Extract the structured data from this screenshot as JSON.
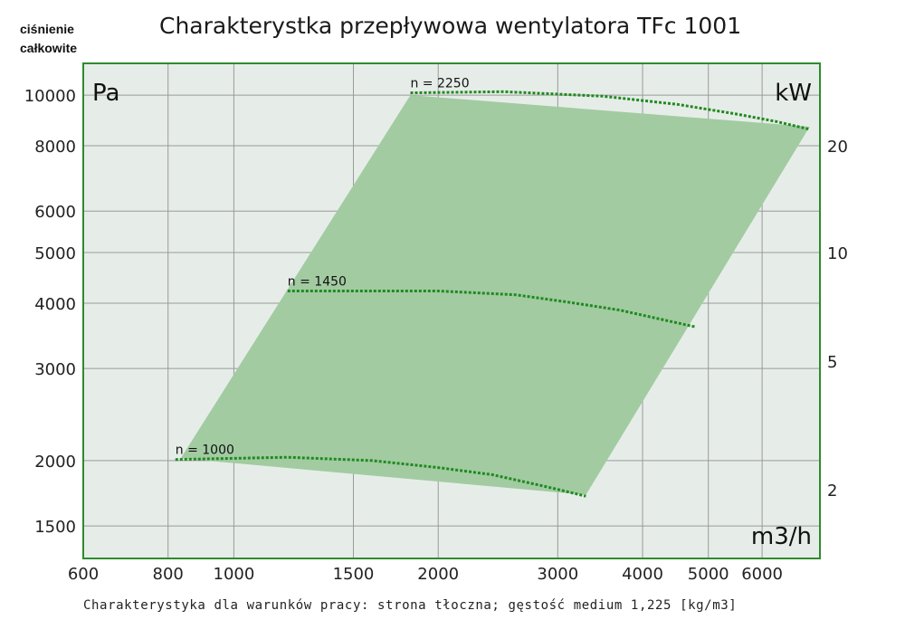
{
  "corner_label": {
    "line1": "ciśnienie",
    "line2": "całkowite"
  },
  "title": "Charakterystka przepływowa wentylatora TFc 1001",
  "footnote": "Charakterystyka dla warunków pracy: strona tłoczna; gęstość medium 1,225 [kg/m3]",
  "units": {
    "y_left": "Pa",
    "y_right": "kW",
    "x": "m3/h"
  },
  "colors": {
    "plot_bg": "#e6ede8",
    "frame": "#2e8b2e",
    "grid": "#9a9a9a",
    "area": "#a2cba2",
    "curve": "#1f8a1f"
  },
  "chart_data": {
    "type": "area",
    "x_scale": "log",
    "y_scale": "log",
    "grid": true,
    "x_ticks": [
      600,
      800,
      1000,
      1500,
      2000,
      3000,
      4000,
      5000,
      6000
    ],
    "y_ticks": [
      1500,
      2000,
      3000,
      4000,
      5000,
      6000,
      8000,
      10000
    ],
    "y_right_ticks": [
      {
        "label": "20",
        "at_y": 8000
      },
      {
        "label": "10",
        "at_y": 5000
      },
      {
        "label": "5",
        "at_y": 3100
      },
      {
        "label": "2",
        "at_y": 1760
      }
    ],
    "xlim": [
      600,
      7300
    ],
    "ylim": [
      1300,
      11500
    ],
    "operating_area": [
      [
        835,
        2020
      ],
      [
        1820,
        10000
      ],
      [
        7050,
        8700
      ],
      [
        3300,
        1720
      ]
    ],
    "series": [
      {
        "name": "n = 2250",
        "points": [
          [
            1820,
            10100
          ],
          [
            2500,
            10150
          ],
          [
            3500,
            9950
          ],
          [
            4500,
            9600
          ],
          [
            5500,
            9200
          ],
          [
            6300,
            8900
          ],
          [
            7050,
            8600
          ]
        ]
      },
      {
        "name": "n = 1450",
        "points": [
          [
            1200,
            4220
          ],
          [
            2000,
            4220
          ],
          [
            2600,
            4150
          ],
          [
            3100,
            4020
          ],
          [
            3700,
            3880
          ],
          [
            4800,
            3600
          ]
        ]
      },
      {
        "name": "n = 1000",
        "points": [
          [
            820,
            2010
          ],
          [
            1200,
            2030
          ],
          [
            1600,
            2000
          ],
          [
            2000,
            1940
          ],
          [
            2400,
            1880
          ],
          [
            2900,
            1780
          ],
          [
            3300,
            1710
          ]
        ]
      }
    ]
  }
}
